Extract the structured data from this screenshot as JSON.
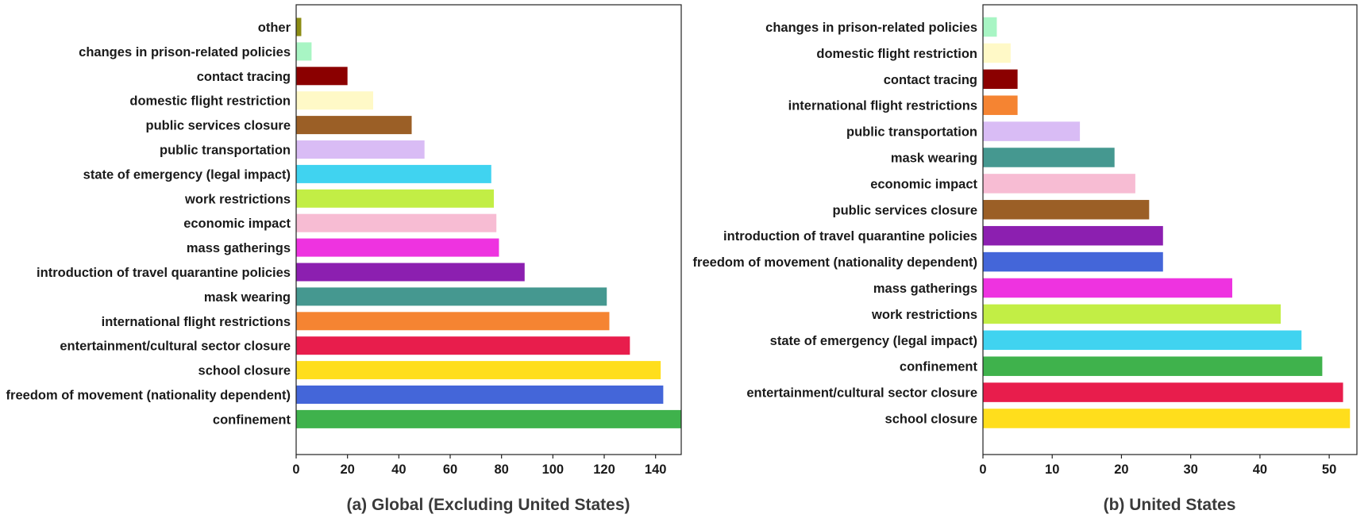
{
  "chart_data": [
    {
      "type": "bar",
      "orientation": "horizontal",
      "title": "(a) Global (Excluding United States)",
      "xlim": [
        0,
        150
      ],
      "xticks": [
        0,
        20,
        40,
        60,
        80,
        100,
        120,
        140
      ],
      "grid": false,
      "categories": [
        "other",
        "changes in prison-related policies",
        "contact tracing",
        "domestic flight restriction",
        "public services closure",
        "public transportation",
        "state of emergency (legal impact)",
        "work restrictions",
        "economic impact",
        "mass gatherings",
        "introduction of travel quarantine policies",
        "mask wearing",
        "international flight restrictions",
        "entertainment/cultural sector closure",
        "school closure",
        "freedom of movement (nationality dependent)",
        "confinement"
      ],
      "values": [
        2,
        6,
        20,
        30,
        45,
        50,
        76,
        77,
        78,
        79,
        89,
        121,
        122,
        130,
        142,
        143,
        151
      ],
      "colors": [
        "#8c8c14",
        "#a8f5c4",
        "#8b0000",
        "#fff9c7",
        "#9b5f26",
        "#d9bcf5",
        "#40d3f0",
        "#c2ee45",
        "#f7bcd3",
        "#ee33e0",
        "#8c1fb0",
        "#459890",
        "#f58432",
        "#e81d4c",
        "#ffde1c",
        "#4466d9",
        "#3fb24c"
      ]
    },
    {
      "type": "bar",
      "orientation": "horizontal",
      "title": "(b) United States",
      "xlim": [
        0,
        54
      ],
      "xticks": [
        0,
        10,
        20,
        30,
        40,
        50
      ],
      "grid": false,
      "categories": [
        "changes in prison-related policies",
        "domestic flight restriction",
        "contact tracing",
        "international flight restrictions",
        "public transportation",
        "mask wearing",
        "economic impact",
        "public services closure",
        "introduction of travel quarantine policies",
        "freedom of movement (nationality dependent)",
        "mass gatherings",
        "work restrictions",
        "state of emergency (legal impact)",
        "confinement",
        "entertainment/cultural sector closure",
        "school closure"
      ],
      "values": [
        2,
        4,
        5,
        5,
        14,
        19,
        22,
        24,
        26,
        26,
        36,
        43,
        46,
        49,
        52,
        53
      ],
      "colors": [
        "#a8f5c4",
        "#fff9c7",
        "#8b0000",
        "#f58432",
        "#d9bcf5",
        "#459890",
        "#f7bcd3",
        "#9b5f26",
        "#8c1fb0",
        "#4466d9",
        "#ee33e0",
        "#c2ee45",
        "#40d3f0",
        "#3fb24c",
        "#e81d4c",
        "#ffde1c"
      ]
    }
  ]
}
